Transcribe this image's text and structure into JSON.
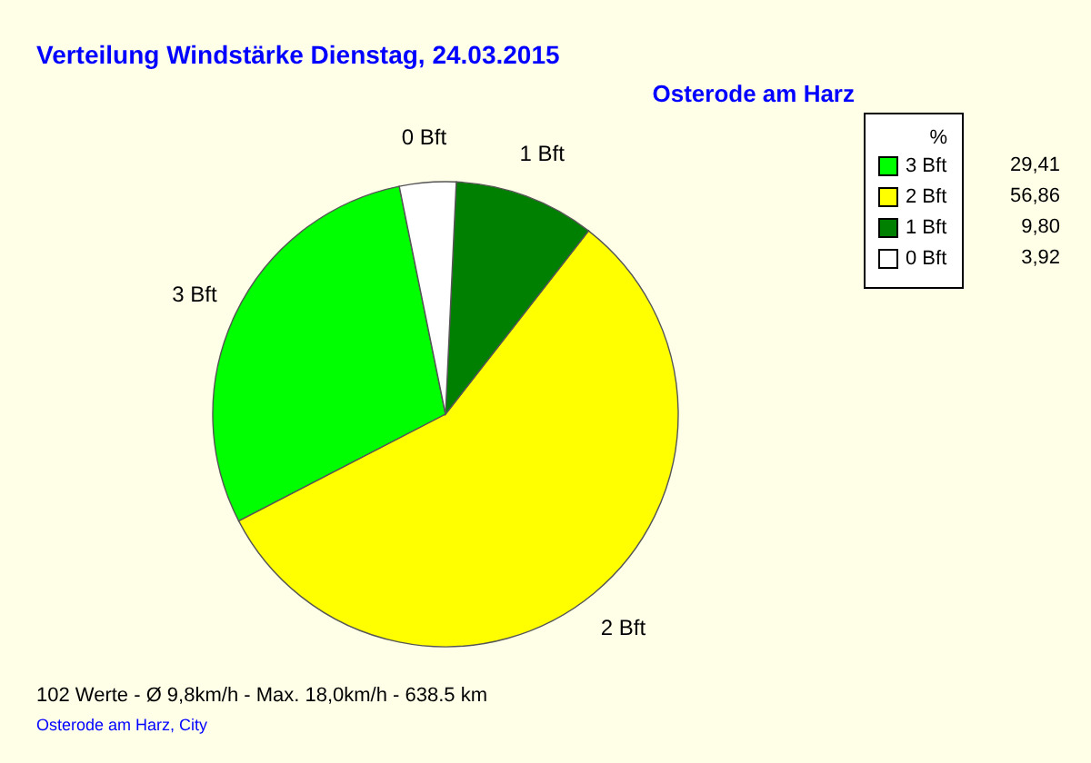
{
  "chart_data": {
    "type": "pie",
    "title": "Verteilung Windstärke  Dienstag, 24.03.2015",
    "subtitle": "Osterode am Harz",
    "categories": [
      "3 Bft",
      "2 Bft",
      "1 Bft",
      "0 Bft"
    ],
    "values": [
      29.41,
      56.86,
      9.8,
      3.92
    ],
    "colors": [
      "#00ff00",
      "#ffff00",
      "#008000",
      "#ffffff"
    ],
    "value_labels": [
      "29,41",
      "56,86",
      "9,80",
      "3,92"
    ],
    "legend_title": "%",
    "legend": "top right",
    "annotations": [
      "102 Werte   -   Ø 9,8km/h  -  Max. 18,0km/h   -   638.5 km",
      "Osterode am Harz, City"
    ]
  }
}
